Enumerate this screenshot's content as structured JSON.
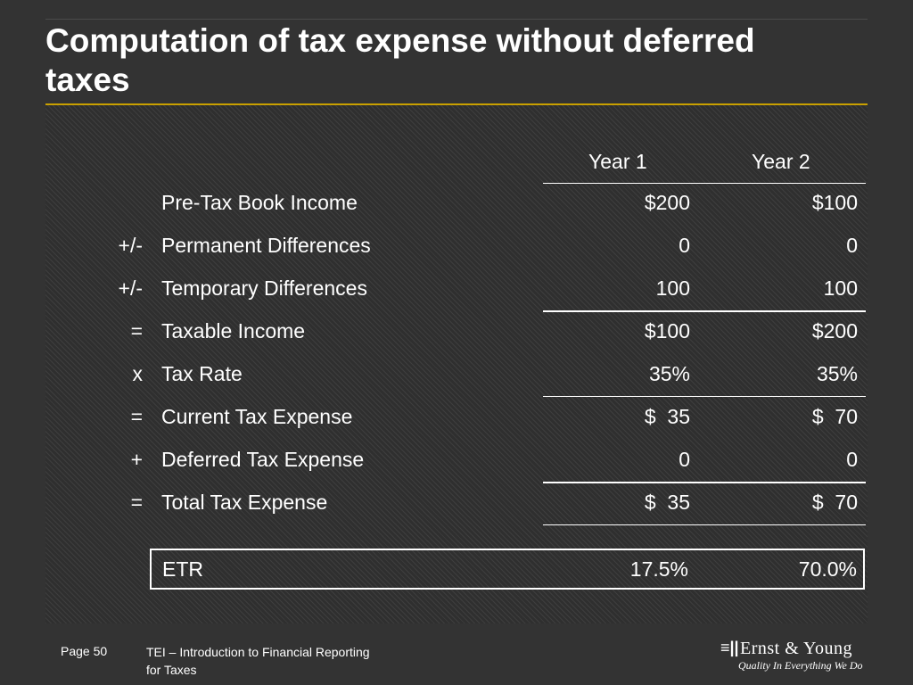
{
  "title": "Computation of tax expense without deferred taxes",
  "table": {
    "headers": [
      "Year 1",
      "Year 2"
    ],
    "rows": [
      {
        "op": "",
        "label": "Pre-Tax Book Income",
        "y1": "$200",
        "y2": "$100"
      },
      {
        "op": "+/-",
        "label": "Permanent Differences",
        "y1": "0",
        "y2": "0"
      },
      {
        "op": "+/-",
        "label": "Temporary Differences",
        "y1": "100",
        "y2": "100"
      },
      {
        "op": "=",
        "label": "Taxable Income",
        "y1": "$100",
        "y2": "$200"
      },
      {
        "op": "x",
        "label": "Tax Rate",
        "y1": "35%",
        "y2": "35%"
      },
      {
        "op": "=",
        "label": "Current Tax Expense",
        "y1": "$  35",
        "y2": "$  70"
      },
      {
        "op": "+",
        "label": "Deferred Tax Expense",
        "y1": "0",
        "y2": "0"
      },
      {
        "op": "=",
        "label": "Total Tax Expense",
        "y1": "$  35",
        "y2": "$  70"
      }
    ],
    "etr": {
      "label": "ETR",
      "y1": "17.5%",
      "y2": "70.0%"
    }
  },
  "footer": {
    "page": "Page 50",
    "text": "TEI – Introduction to Financial Reporting for Taxes",
    "logo_mark": "≡||",
    "logo_name": "Ernst & Young",
    "logo_tagline": "Quality In Everything We Do"
  },
  "colors": {
    "background": "#333333",
    "accent_rule": "#c9a000",
    "text": "#ffffff"
  }
}
